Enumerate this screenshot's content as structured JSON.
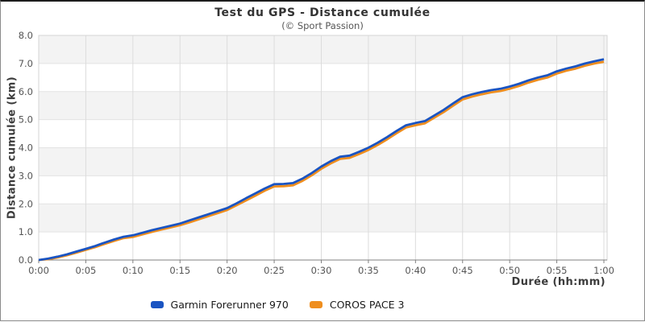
{
  "chart_data": {
    "type": "line",
    "title": "Test du GPS - Distance cumulée",
    "subtitle": "(© Sport Passion)",
    "xlabel": "Durée (hh:mm)",
    "ylabel": "Distance cumulée (km)",
    "xlim_minutes": [
      0,
      60
    ],
    "ylim": [
      0,
      8
    ],
    "grid": true,
    "band_fill": "#f3f3f3",
    "gridline_color": "#dcdcdc",
    "axis_line_color": "#808080",
    "tick_label_color": "#555555",
    "legend_position": "bottom-center",
    "xtick_minutes": [
      0,
      5,
      10,
      15,
      20,
      25,
      30,
      35,
      40,
      45,
      50,
      55,
      60
    ],
    "xtick_labels": [
      "0:00",
      "0:05",
      "0:10",
      "0:15",
      "0:20",
      "0:25",
      "0:30",
      "0:35",
      "0:40",
      "0:45",
      "0:50",
      "0:55",
      "1:00"
    ],
    "ytick_values": [
      0,
      1,
      2,
      3,
      4,
      5,
      6,
      7,
      8
    ],
    "ytick_labels": [
      "0.0",
      "1.0",
      "2.0",
      "3.0",
      "4.0",
      "5.0",
      "6.0",
      "7.0",
      "8.0"
    ],
    "x_minutes": [
      0,
      1,
      2,
      3,
      4,
      5,
      6,
      7,
      8,
      9,
      10,
      11,
      12,
      13,
      14,
      15,
      16,
      17,
      18,
      19,
      20,
      21,
      22,
      23,
      24,
      25,
      26,
      27,
      28,
      29,
      30,
      31,
      32,
      33,
      34,
      35,
      36,
      37,
      38,
      39,
      40,
      41,
      42,
      43,
      44,
      45,
      46,
      47,
      48,
      49,
      50,
      51,
      52,
      53,
      54,
      55,
      56,
      57,
      58,
      59,
      60
    ],
    "series": [
      {
        "name": "Garmin Forerunner 970",
        "color": "#1a54c2",
        "values": [
          0,
          0.05,
          0.12,
          0.2,
          0.3,
          0.4,
          0.5,
          0.62,
          0.73,
          0.83,
          0.88,
          0.97,
          1.06,
          1.14,
          1.22,
          1.3,
          1.41,
          1.52,
          1.63,
          1.74,
          1.85,
          2.02,
          2.2,
          2.37,
          2.55,
          2.7,
          2.71,
          2.74,
          2.9,
          3.1,
          3.33,
          3.52,
          3.68,
          3.72,
          3.85,
          4.0,
          4.18,
          4.38,
          4.6,
          4.8,
          4.88,
          4.95,
          5.15,
          5.35,
          5.58,
          5.8,
          5.9,
          5.98,
          6.05,
          6.1,
          6.18,
          6.28,
          6.4,
          6.5,
          6.58,
          6.72,
          6.82,
          6.9,
          7.0,
          7.08,
          7.15
        ]
      },
      {
        "name": "COROS PACE 3",
        "color": "#ef8e1e",
        "values": [
          0,
          0.03,
          0.09,
          0.17,
          0.26,
          0.36,
          0.46,
          0.57,
          0.68,
          0.78,
          0.82,
          0.91,
          1.0,
          1.08,
          1.16,
          1.24,
          1.34,
          1.45,
          1.56,
          1.67,
          1.78,
          1.95,
          2.12,
          2.29,
          2.47,
          2.62,
          2.63,
          2.66,
          2.82,
          3.02,
          3.25,
          3.44,
          3.6,
          3.64,
          3.77,
          3.92,
          4.1,
          4.3,
          4.52,
          4.72,
          4.8,
          4.87,
          5.07,
          5.27,
          5.5,
          5.72,
          5.82,
          5.9,
          5.97,
          6.02,
          6.1,
          6.2,
          6.32,
          6.42,
          6.5,
          6.64,
          6.74,
          6.82,
          6.92,
          7.0,
          7.06
        ]
      }
    ]
  }
}
